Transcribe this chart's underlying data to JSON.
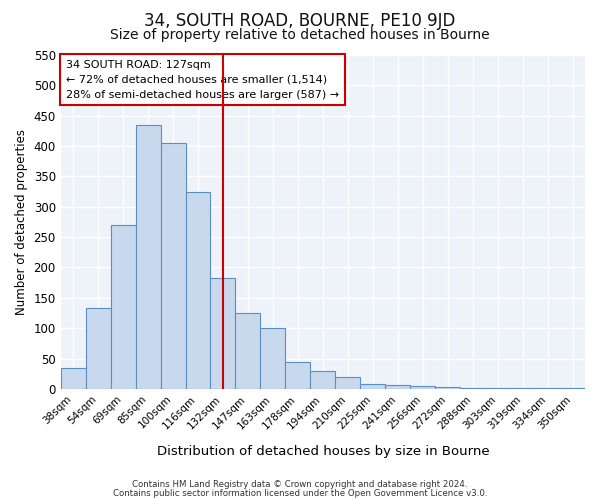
{
  "title": "34, SOUTH ROAD, BOURNE, PE10 9JD",
  "subtitle": "Size of property relative to detached houses in Bourne",
  "xlabel": "Distribution of detached houses by size in Bourne",
  "ylabel": "Number of detached properties",
  "bar_labels": [
    "38sqm",
    "54sqm",
    "69sqm",
    "85sqm",
    "100sqm",
    "116sqm",
    "132sqm",
    "147sqm",
    "163sqm",
    "178sqm",
    "194sqm",
    "210sqm",
    "225sqm",
    "241sqm",
    "256sqm",
    "272sqm",
    "288sqm",
    "303sqm",
    "319sqm",
    "334sqm",
    "350sqm"
  ],
  "bar_values": [
    35,
    133,
    270,
    435,
    405,
    325,
    183,
    125,
    100,
    45,
    30,
    20,
    8,
    7,
    5,
    3,
    2,
    1,
    1,
    1,
    1
  ],
  "bar_color": "#c8d9ee",
  "bar_edge_color": "#5b8ec4",
  "vline_x_index": 6,
  "vline_color": "#cc0000",
  "ylim": [
    0,
    550
  ],
  "yticks": [
    0,
    50,
    100,
    150,
    200,
    250,
    300,
    350,
    400,
    450,
    500,
    550
  ],
  "annotation_title": "34 SOUTH ROAD: 127sqm",
  "annotation_line1": "← 72% of detached houses are smaller (1,514)",
  "annotation_line2": "28% of semi-detached houses are larger (587) →",
  "annotation_box_edgecolor": "#cc0000",
  "footer_line1": "Contains HM Land Registry data © Crown copyright and database right 2024.",
  "footer_line2": "Contains public sector information licensed under the Open Government Licence v3.0.",
  "bg_color": "#eef2f9",
  "grid_color": "#ffffff",
  "title_fontsize": 12,
  "subtitle_fontsize": 10
}
